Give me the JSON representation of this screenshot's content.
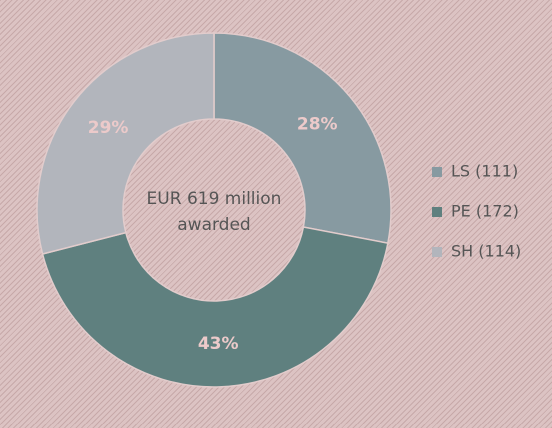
{
  "chart_data": {
    "type": "donut",
    "categories": [
      "LS (111)",
      "PE (172)",
      "SH (114)"
    ],
    "values": [
      28,
      43,
      29
    ],
    "value_labels": [
      "28%",
      "43%",
      "29%"
    ],
    "colors": [
      "#879aa1",
      "#5f807f",
      "#b2b5bc"
    ],
    "center_text": [
      "EUR 619 million",
      "awarded"
    ],
    "legend": "right"
  }
}
